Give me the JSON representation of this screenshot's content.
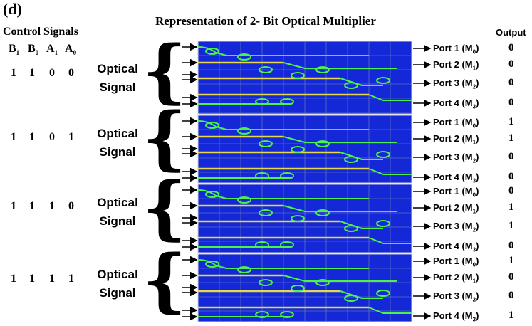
{
  "panel_label": "(d)",
  "title": "Representation of 2- Bit Optical Multiplier",
  "control_signals_title": "Control Signals",
  "output_header": "Output",
  "control_headers": [
    {
      "base": "B",
      "sub": "1"
    },
    {
      "base": "B",
      "sub": "0"
    },
    {
      "base": "A",
      "sub": "1"
    },
    {
      "base": "A",
      "sub": "0"
    }
  ],
  "optical_signal_label": {
    "line1": "Optical",
    "line2": "Signal"
  },
  "ports": [
    {
      "name": "Port 1 (M",
      "sub": "0",
      "close": ")"
    },
    {
      "name": "Port 2 (M",
      "sub": "1",
      "close": ")"
    },
    {
      "name": "Port 3 (M",
      "sub": "2",
      "close": ")"
    },
    {
      "name": "Port 4 (M",
      "sub": "3",
      "close": ")"
    }
  ],
  "rows": [
    {
      "controls": [
        "1",
        "1",
        "0",
        "0"
      ],
      "outputs": [
        "0",
        "0",
        "0",
        "0"
      ]
    },
    {
      "controls": [
        "1",
        "1",
        "0",
        "1"
      ],
      "outputs": [
        "1",
        "1",
        "0",
        "0"
      ]
    },
    {
      "controls": [
        "1",
        "1",
        "1",
        "0"
      ],
      "outputs": [
        "0",
        "1",
        "1",
        "0"
      ]
    },
    {
      "controls": [
        "1",
        "1",
        "1",
        "1"
      ],
      "outputs": [
        "1",
        "0",
        "0",
        "1"
      ]
    }
  ],
  "colors": {
    "simulation_background": "#1428d8",
    "simulation_grid": "#7a86b8",
    "waveguide_green": "#4cf24c",
    "waveguide_yellow": "#e6d84a",
    "arrow": "#000000"
  }
}
